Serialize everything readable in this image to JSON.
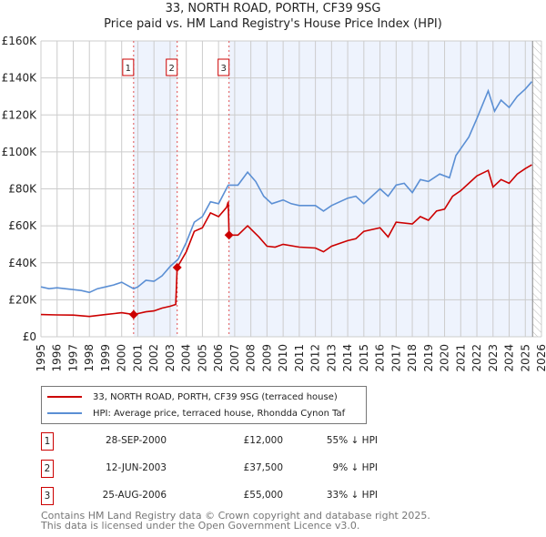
{
  "title": "33, NORTH ROAD, PORTH, CF39 9SG",
  "subtitle": "Price paid vs. HM Land Registry's House Price Index (HPI)",
  "colors": {
    "property": "#cc0000",
    "hpi": "#5b8fd4",
    "shade": "#eef3fd"
  },
  "chart_data": {
    "type": "line",
    "xlim": [
      1995,
      2026
    ],
    "ylim": [
      0,
      160000
    ],
    "y_ticks": [
      0,
      20000,
      40000,
      60000,
      80000,
      100000,
      120000,
      140000,
      160000
    ],
    "y_tick_labels": [
      "£0",
      "£20K",
      "£40K",
      "£60K",
      "£80K",
      "£100K",
      "£120K",
      "£140K",
      "£160K"
    ],
    "x_tick_labels": [
      "1995",
      "1996",
      "1997",
      "1998",
      "1999",
      "2000",
      "2001",
      "2002",
      "2003",
      "2004",
      "2005",
      "2006",
      "2007",
      "2008",
      "2009",
      "2010",
      "2011",
      "2012",
      "2013",
      "2014",
      "2015",
      "2016",
      "2017",
      "2018",
      "2019",
      "2020",
      "2021",
      "2022",
      "2023",
      "2024",
      "2025",
      "2026"
    ],
    "grid": true,
    "series": [
      {
        "name": "33, NORTH ROAD, PORTH, CF39 9SG (terraced house)",
        "color": "#cc0000",
        "x": [
          1995,
          1996,
          1997,
          1998,
          1999,
          2000,
          2000.74,
          2001.5,
          2002,
          2002.5,
          2003,
          2003.35,
          2003.44,
          2004,
          2004.5,
          2005,
          2005.5,
          2006,
          2006.5,
          2006.6,
          2006.65,
          2007.2,
          2007.8,
          2008.5,
          2009,
          2009.5,
          2010,
          2011,
          2012,
          2012.5,
          2013,
          2014,
          2014.5,
          2015,
          2016,
          2016.5,
          2017,
          2018,
          2018.5,
          2019,
          2019.5,
          2020,
          2020.5,
          2021,
          2021.5,
          2022,
          2022.7,
          2023,
          2023.5,
          2024,
          2024.5,
          2025,
          2025.4
        ],
        "y": [
          12000,
          11800,
          11700,
          11000,
          12000,
          13000,
          12000,
          13500,
          14000,
          15500,
          16500,
          17500,
          37500,
          46000,
          57000,
          59000,
          67000,
          65000,
          70000,
          73000,
          55000,
          55000,
          60000,
          54000,
          49000,
          48500,
          50000,
          48500,
          48000,
          46000,
          49000,
          52000,
          53000,
          57000,
          59000,
          54000,
          62000,
          61000,
          65000,
          63000,
          68000,
          69000,
          76000,
          79000,
          83000,
          87000,
          90000,
          81000,
          85000,
          83000,
          88000,
          91000,
          93000
        ]
      },
      {
        "name": "HPI: Average price, terraced house, Rhondda Cynon Taf",
        "color": "#5b8fd4",
        "x": [
          1995,
          1995.5,
          1996,
          1996.5,
          1997,
          1997.5,
          1998,
          1998.5,
          1999,
          1999.5,
          2000,
          2000.74,
          2001,
          2001.5,
          2002,
          2002.5,
          2003,
          2003.5,
          2004,
          2004.5,
          2005,
          2005.5,
          2006,
          2006.6,
          2007.2,
          2007.8,
          2008.3,
          2008.8,
          2009.3,
          2010,
          2010.5,
          2011,
          2012,
          2012.5,
          2013,
          2014,
          2014.5,
          2015,
          2015.5,
          2016,
          2016.5,
          2017,
          2017.5,
          2018,
          2018.5,
          2019,
          2019.7,
          2020.3,
          2020.7,
          2021.5,
          2022,
          2022.7,
          2023.1,
          2023.5,
          2024,
          2024.5,
          2025,
          2025.4
        ],
        "y": [
          27000,
          26000,
          26500,
          26000,
          25500,
          25000,
          24000,
          26000,
          27000,
          28000,
          29500,
          26000,
          27000,
          30500,
          30000,
          33000,
          38000,
          42000,
          51000,
          62000,
          65000,
          73000,
          72000,
          82000,
          82000,
          89000,
          84000,
          76000,
          72000,
          74000,
          72000,
          71000,
          71000,
          68000,
          71000,
          75000,
          76000,
          72000,
          76000,
          80000,
          76000,
          82000,
          83000,
          78000,
          85000,
          84000,
          88000,
          86000,
          98000,
          108000,
          118000,
          133000,
          122000,
          128000,
          124000,
          130000,
          134000,
          138000
        ]
      }
    ],
    "sales": [
      {
        "label": "1",
        "x": 2000.74,
        "price": 12000
      },
      {
        "label": "2",
        "x": 2003.44,
        "price": 37500
      },
      {
        "label": "3",
        "x": 2006.65,
        "price": 55000
      }
    ],
    "forecast_start": 2025.45,
    "legend": "below"
  },
  "legend": {
    "property": "33, NORTH ROAD, PORTH, CF39 9SG (terraced house)",
    "hpi": "HPI: Average price, terraced house, Rhondda Cynon Taf"
  },
  "sales_table": [
    {
      "num": "1",
      "date": "28-SEP-2000",
      "price": "£12,000",
      "hpi": "55% ↓ HPI"
    },
    {
      "num": "2",
      "date": "12-JUN-2003",
      "price": "£37,500",
      "hpi": "9% ↓ HPI"
    },
    {
      "num": "3",
      "date": "25-AUG-2006",
      "price": "£55,000",
      "hpi": "33% ↓ HPI"
    }
  ],
  "footer": {
    "line1": "Contains HM Land Registry data © Crown copyright and database right 2025.",
    "line2": "This data is licensed under the Open Government Licence v3.0."
  }
}
